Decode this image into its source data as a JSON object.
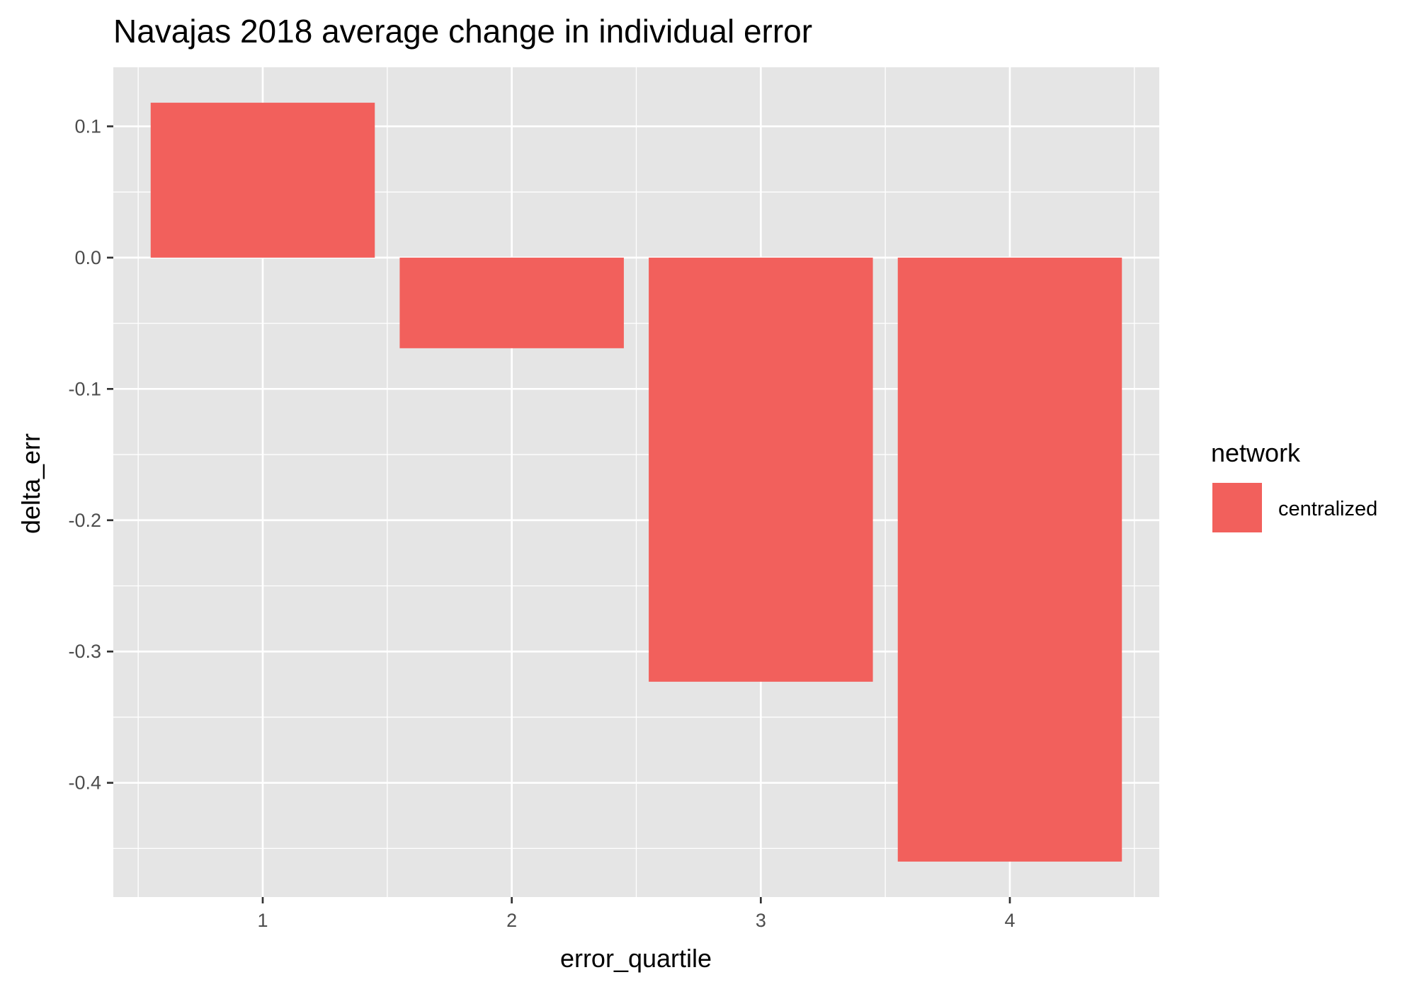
{
  "chart_data": {
    "type": "bar",
    "title": "Navajas 2018 average change in individual error",
    "xlabel": "error_quartile",
    "ylabel": "delta_err",
    "categories": [
      "1",
      "2",
      "3",
      "4"
    ],
    "series": [
      {
        "name": "centralized",
        "values": [
          0.118,
          -0.069,
          -0.323,
          -0.46
        ]
      }
    ],
    "ylim": [
      -0.487,
      0.145
    ],
    "yticks": [
      0.1,
      0.0,
      -0.1,
      -0.2,
      -0.3,
      -0.4
    ],
    "ytick_labels": [
      "0.1",
      "0.0",
      "-0.1",
      "-0.2",
      "-0.3",
      "-0.4"
    ],
    "grid": true,
    "legend": {
      "title": "network",
      "position": "right"
    },
    "colors": {
      "bar": "#F2605C",
      "panel": "#E5E5E5",
      "grid": "#FFFFFF"
    }
  }
}
